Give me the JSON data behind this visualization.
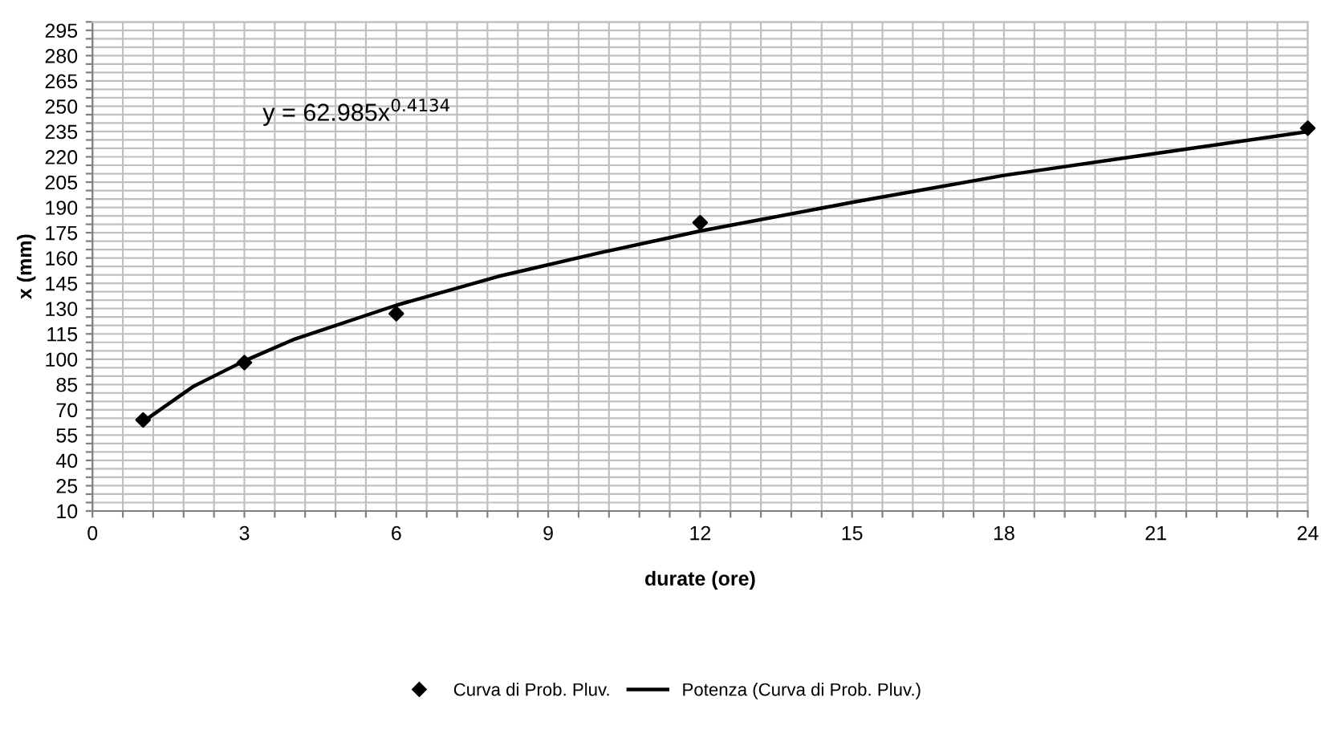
{
  "chart_data": {
    "type": "scatter",
    "xlabel": "durate (ore)",
    "ylabel": "x (mm)",
    "annotations": [
      "y = 62.985x$^{0.4134}$"
    ],
    "series": [
      {
        "name": "Curva di Prob. Pluv.",
        "color": "#000000",
        "marker": "diamond",
        "x": [
          1,
          3,
          6,
          12,
          24
        ],
        "values": [
          64,
          98,
          127,
          181,
          237
        ]
      },
      {
        "name": "Potenza (Curva di Prob. Pluv.)",
        "type": "line",
        "color": "#000000",
        "marker": "none",
        "line_style": "solid",
        "x": [
          1,
          2,
          3,
          4,
          6,
          8,
          10,
          12,
          15,
          18,
          21,
          24
        ],
        "values": [
          63,
          84,
          99,
          112,
          132,
          149,
          163,
          176,
          193,
          209,
          222,
          235
        ]
      }
    ],
    "xlim": [
      0,
      24
    ],
    "ylim": [
      10,
      300
    ],
    "xticks": [
      0,
      {
        "value": 0.6,
        "label": null
      },
      {
        "value": 1.2,
        "label": null
      },
      {
        "value": 1.8,
        "label": null
      },
      {
        "value": 2.4,
        "label": null
      },
      3,
      {
        "value": 3.6,
        "label": null
      },
      {
        "value": 4.2,
        "label": null
      },
      {
        "value": 4.8,
        "label": null
      },
      {
        "value": 5.4,
        "label": null
      },
      6,
      {
        "value": 6.6,
        "label": null
      },
      {
        "value": 7.2,
        "label": null
      },
      {
        "value": 7.8,
        "label": null
      },
      {
        "value": 8.4,
        "label": null
      },
      9,
      {
        "value": 9.6,
        "label": null
      },
      {
        "value": 10.2,
        "label": null
      },
      {
        "value": 10.8,
        "label": null
      },
      {
        "value": 11.4,
        "label": null
      },
      12,
      {
        "value": 12.6,
        "label": null
      },
      {
        "value": 13.2,
        "label": null
      },
      {
        "value": 13.8,
        "label": null
      },
      {
        "value": 14.4,
        "label": null
      },
      15,
      {
        "value": 15.6,
        "label": null
      },
      {
        "value": 16.2,
        "label": null
      },
      {
        "value": 16.8,
        "label": null
      },
      {
        "value": 17.4,
        "label": null
      },
      18,
      {
        "value": 18.6,
        "label": null
      },
      {
        "value": 19.2,
        "label": null
      },
      {
        "value": 19.8,
        "label": null
      },
      {
        "value": 20.4,
        "label": null
      },
      21,
      {
        "value": 21.6,
        "label": null
      },
      {
        "value": 22.2,
        "label": null
      },
      {
        "value": 22.8,
        "label": null
      },
      {
        "value": 23.4,
        "label": null
      },
      24
    ],
    "yticks": [
      10,
      {
        "value": 15,
        "label": null
      },
      {
        "value": 20,
        "label": null
      },
      25,
      {
        "value": 30,
        "label": null
      },
      {
        "value": 35,
        "label": null
      },
      40,
      {
        "value": 45,
        "label": null
      },
      {
        "value": 50,
        "label": null
      },
      55,
      {
        "value": 60,
        "label": null
      },
      {
        "value": 65,
        "label": null
      },
      70,
      {
        "value": 75,
        "label": null
      },
      {
        "value": 80,
        "label": null
      },
      85,
      {
        "value": 90,
        "label": null
      },
      {
        "value": 95,
        "label": null
      },
      100,
      {
        "value": 105,
        "label": null
      },
      {
        "value": 110,
        "label": null
      },
      115,
      {
        "value": 120,
        "label": null
      },
      {
        "value": 125,
        "label": null
      },
      130,
      {
        "value": 135,
        "label": null
      },
      {
        "value": 140,
        "label": null
      },
      145,
      {
        "value": 150,
        "label": null
      },
      {
        "value": 155,
        "label": null
      },
      160,
      {
        "value": 165,
        "label": null
      },
      {
        "value": 170,
        "label": null
      },
      175,
      {
        "value": 180,
        "label": null
      },
      {
        "value": 185,
        "label": null
      },
      190,
      {
        "value": 195,
        "label": null
      },
      {
        "value": 200,
        "label": null
      },
      205,
      {
        "value": 210,
        "label": null
      },
      {
        "value": 215,
        "label": null
      },
      220,
      {
        "value": 225,
        "label": null
      },
      {
        "value": 230,
        "label": null
      },
      235,
      {
        "value": 240,
        "label": null
      },
      {
        "value": 245,
        "label": null
      },
      250,
      {
        "value": 255,
        "label": null
      },
      {
        "value": 260,
        "label": null
      },
      265,
      {
        "value": 270,
        "label": null
      },
      {
        "value": 275,
        "label": null
      },
      280,
      {
        "value": 285,
        "label": null
      },
      {
        "value": 290,
        "label": null
      },
      295,
      {
        "value": 300,
        "label": null
      }
    ],
    "grid": true,
    "legend": "bottom"
  }
}
